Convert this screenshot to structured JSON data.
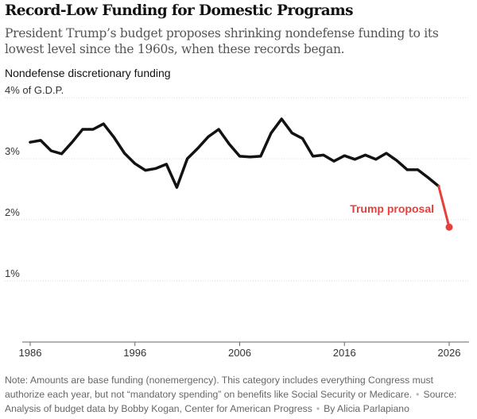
{
  "header": {
    "title": "Record-Low Funding for Domestic Programs",
    "subtitle": "President Trump’s budget proposes shrinking nondefense funding to its lowest level since the 1960s, when these records began.",
    "chart_label": "Nondefense discretionary funding"
  },
  "footer": {
    "note": "Note: Amounts are base funding (nonemergency). This category includes everything Congress must authorize each year, but not “mandatory spending” on benefits like Social Security or Medicare.",
    "source": "Source: Analysis of budget data by Bobby Kogan, Center for American Progress",
    "byline": "By Alicia Parlapiano",
    "separator": "•"
  },
  "colors": {
    "series": "#121212",
    "proposal": "#e5403b",
    "grid": "#d9d9d9",
    "axis": "#666666"
  },
  "chart_data": {
    "type": "line",
    "title": "Record-Low Funding for Domestic Programs",
    "ylabel": "Nondefense discretionary funding (% of G.D.P.)",
    "xlabel": "",
    "xlim": [
      1986,
      2027
    ],
    "ylim": [
      0,
      4
    ],
    "grid": true,
    "y_ticks": [
      {
        "value": 4,
        "label": "4% of G.D.P."
      },
      {
        "value": 3,
        "label": "3%"
      },
      {
        "value": 2,
        "label": "2%"
      },
      {
        "value": 1,
        "label": "1%"
      }
    ],
    "x_ticks": [
      {
        "value": 1986,
        "label": "1986"
      },
      {
        "value": 1996,
        "label": "1996"
      },
      {
        "value": 2006,
        "label": "2006"
      },
      {
        "value": 2016,
        "label": "2016"
      },
      {
        "value": 2026,
        "label": "2026"
      }
    ],
    "series": [
      {
        "name": "Nondefense discretionary funding",
        "x": [
          1986,
          1987,
          1988,
          1989,
          1990,
          1991,
          1992,
          1993,
          1994,
          1995,
          1996,
          1997,
          1998,
          1999,
          2000,
          2001,
          2002,
          2003,
          2004,
          2005,
          2006,
          2007,
          2008,
          2009,
          2010,
          2011,
          2012,
          2013,
          2014,
          2015,
          2016,
          2017,
          2018,
          2019,
          2020,
          2021,
          2022,
          2023,
          2024,
          2025
        ],
        "values": [
          3.27,
          3.3,
          3.13,
          3.08,
          3.27,
          3.48,
          3.48,
          3.57,
          3.35,
          3.09,
          2.92,
          2.81,
          2.84,
          2.91,
          2.53,
          3.0,
          3.17,
          3.36,
          3.48,
          3.24,
          3.04,
          3.03,
          3.04,
          3.42,
          3.65,
          3.42,
          3.33,
          3.04,
          3.06,
          2.96,
          3.05,
          2.99,
          3.06,
          2.99,
          3.09,
          2.97,
          2.82,
          2.82,
          2.69,
          2.55
        ]
      },
      {
        "name": "Trump proposal",
        "x": [
          2025,
          2026
        ],
        "values": [
          2.55,
          1.88
        ]
      }
    ],
    "annotations": [
      {
        "text": "Trump proposal",
        "series": "Trump proposal"
      }
    ]
  }
}
